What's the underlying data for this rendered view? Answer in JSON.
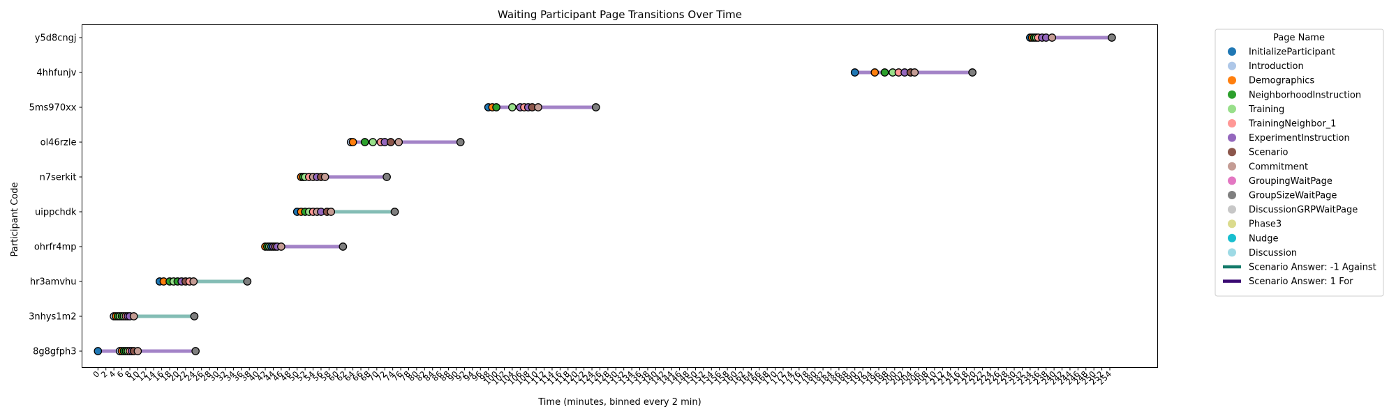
{
  "chart_data": {
    "type": "scatter",
    "title": "Waiting Participant Page Transitions Over Time",
    "xlabel": "Time (minutes, binned every 2 min)",
    "ylabel": "Participant Code",
    "xlim": [
      -4,
      266
    ],
    "x_ticks": [
      0,
      2,
      4,
      6,
      8,
      10,
      12,
      14,
      16,
      18,
      20,
      22,
      24,
      26,
      28,
      30,
      32,
      34,
      36,
      38,
      40,
      42,
      44,
      46,
      48,
      50,
      52,
      54,
      56,
      58,
      60,
      62,
      64,
      66,
      68,
      70,
      72,
      74,
      76,
      78,
      80,
      82,
      84,
      86,
      88,
      90,
      92,
      94,
      96,
      98,
      100,
      102,
      104,
      106,
      108,
      110,
      112,
      114,
      116,
      118,
      120,
      122,
      124,
      126,
      128,
      130,
      132,
      134,
      136,
      138,
      140,
      142,
      144,
      146,
      148,
      150,
      152,
      154,
      156,
      158,
      160,
      162,
      164,
      166,
      168,
      170,
      172,
      174,
      176,
      178,
      180,
      182,
      184,
      186,
      188,
      190,
      192,
      194,
      196,
      198,
      200,
      202,
      204,
      206,
      208,
      210,
      212,
      214,
      216,
      218,
      220,
      222,
      224,
      226,
      228,
      230,
      232,
      234,
      236,
      238,
      240,
      242,
      244,
      246,
      248,
      250,
      252,
      254
    ],
    "participants": [
      "8g8gfph3",
      "3nhys1m2",
      "hr3amvhu",
      "ohrfr4mp",
      "uippchdk",
      "n7serkit",
      "ol46rzle",
      "5ms970xx",
      "4hhfunjv",
      "y5d8cngj"
    ],
    "grid": false,
    "legend": {
      "title": "Page Name",
      "placement": "outside-right",
      "pages": [
        {
          "name": "InitializeParticipant",
          "color": "#1f77b4"
        },
        {
          "name": "Introduction",
          "color": "#aec7e8"
        },
        {
          "name": "Demographics",
          "color": "#ff7f0e"
        },
        {
          "name": "NeighborhoodInstruction",
          "color": "#2ca02c"
        },
        {
          "name": "Training",
          "color": "#98df8a"
        },
        {
          "name": "TrainingNeighbor_1",
          "color": "#ff9896"
        },
        {
          "name": "ExperimentInstruction",
          "color": "#9467bd"
        },
        {
          "name": "Scenario",
          "color": "#8c564b"
        },
        {
          "name": "Commitment",
          "color": "#c49c94"
        },
        {
          "name": "GroupingWaitPage",
          "color": "#e377c2"
        },
        {
          "name": "GroupSizeWaitPage",
          "color": "#7f7f7f"
        },
        {
          "name": "DiscussionGRPWaitPage",
          "color": "#c7c7c7"
        },
        {
          "name": "Phase3",
          "color": "#dbdb8d"
        },
        {
          "name": "Nudge",
          "color": "#17becf"
        },
        {
          "name": "Discussion",
          "color": "#9edae5"
        }
      ],
      "answers": [
        {
          "name": "Scenario Answer: -1 Against",
          "color": "#137a6a"
        },
        {
          "name": "Scenario Answer: 1 For",
          "color": "#3b0a73"
        }
      ]
    },
    "series": [
      {
        "participant": "8g8gfph3",
        "answer": 1,
        "points": [
          {
            "x": 0,
            "page": "InitializeParticipant"
          },
          {
            "x": 5.5,
            "page": "Introduction"
          },
          {
            "x": 6,
            "page": "Demographics"
          },
          {
            "x": 6.5,
            "page": "NeighborhoodInstruction"
          },
          {
            "x": 7,
            "page": "NeighborhoodInstruction"
          },
          {
            "x": 7.5,
            "page": "Training"
          },
          {
            "x": 8,
            "page": "TrainingNeighbor_1"
          },
          {
            "x": 8.5,
            "page": "ExperimentInstruction"
          },
          {
            "x": 9,
            "page": "Scenario"
          },
          {
            "x": 10,
            "page": "Commitment"
          },
          {
            "x": 24.5,
            "page": "GroupSizeWaitPage"
          }
        ]
      },
      {
        "participant": "3nhys1m2",
        "answer": -1,
        "points": [
          {
            "x": 4,
            "page": "Introduction"
          },
          {
            "x": 4.5,
            "page": "Demographics"
          },
          {
            "x": 5,
            "page": "NeighborhoodInstruction"
          },
          {
            "x": 5.5,
            "page": "Training"
          },
          {
            "x": 6,
            "page": "NeighborhoodInstruction"
          },
          {
            "x": 6.5,
            "page": "Training"
          },
          {
            "x": 7,
            "page": "TrainingNeighbor_1"
          },
          {
            "x": 7.5,
            "page": "ExperimentInstruction"
          },
          {
            "x": 8,
            "page": "ExperimentInstruction"
          },
          {
            "x": 9,
            "page": "Commitment"
          },
          {
            "x": 24.2,
            "page": "GroupSizeWaitPage"
          }
        ]
      },
      {
        "participant": "hr3amvhu",
        "answer": -1,
        "points": [
          {
            "x": 15.5,
            "page": "InitializeParticipant"
          },
          {
            "x": 16.5,
            "page": "Demographics"
          },
          {
            "x": 18,
            "page": "NeighborhoodInstruction"
          },
          {
            "x": 19,
            "page": "Training"
          },
          {
            "x": 20,
            "page": "NeighborhoodInstruction"
          },
          {
            "x": 21,
            "page": "ExperimentInstruction"
          },
          {
            "x": 22,
            "page": "Scenario"
          },
          {
            "x": 23,
            "page": "TrainingNeighbor_1"
          },
          {
            "x": 24,
            "page": "Commitment"
          },
          {
            "x": 37.5,
            "page": "GroupSizeWaitPage"
          }
        ]
      },
      {
        "participant": "ohrfr4mp",
        "answer": 1,
        "points": [
          {
            "x": 42,
            "page": "Demographics"
          },
          {
            "x": 42.5,
            "page": "NeighborhoodInstruction"
          },
          {
            "x": 43,
            "page": "Training"
          },
          {
            "x": 43.5,
            "page": "InitializeParticipant"
          },
          {
            "x": 44,
            "page": "ExperimentInstruction"
          },
          {
            "x": 44.5,
            "page": "Scenario"
          },
          {
            "x": 45,
            "page": "ExperimentInstruction"
          },
          {
            "x": 46,
            "page": "Commitment"
          },
          {
            "x": 61.5,
            "page": "GroupSizeWaitPage"
          }
        ]
      },
      {
        "participant": "uippchdk",
        "answer": -1,
        "points": [
          {
            "x": 50,
            "page": "InitializeParticipant"
          },
          {
            "x": 51,
            "page": "Demographics"
          },
          {
            "x": 52,
            "page": "NeighborhoodInstruction"
          },
          {
            "x": 53,
            "page": "Training"
          },
          {
            "x": 54,
            "page": "TrainingNeighbor_1"
          },
          {
            "x": 55,
            "page": "Commitment"
          },
          {
            "x": 56,
            "page": "ExperimentInstruction"
          },
          {
            "x": 57.5,
            "page": "Scenario"
          },
          {
            "x": 58.5,
            "page": "Commitment"
          },
          {
            "x": 74.5,
            "page": "GroupSizeWaitPage"
          }
        ]
      },
      {
        "participant": "n7serkit",
        "answer": 1,
        "points": [
          {
            "x": 51,
            "page": "Demographics"
          },
          {
            "x": 51.5,
            "page": "NeighborhoodInstruction"
          },
          {
            "x": 52,
            "page": "Training"
          },
          {
            "x": 53,
            "page": "TrainingNeighbor_1"
          },
          {
            "x": 54,
            "page": "Commitment"
          },
          {
            "x": 55,
            "page": "ExperimentInstruction"
          },
          {
            "x": 56,
            "page": "Scenario"
          },
          {
            "x": 57,
            "page": "Commitment"
          },
          {
            "x": 72.5,
            "page": "GroupSizeWaitPage"
          }
        ]
      },
      {
        "participant": "ol46rzle",
        "answer": 1,
        "points": [
          {
            "x": 63.5,
            "page": "Introduction"
          },
          {
            "x": 64,
            "page": "Demographics"
          },
          {
            "x": 67,
            "page": "NeighborhoodInstruction"
          },
          {
            "x": 69,
            "page": "Training"
          },
          {
            "x": 71,
            "page": "TrainingNeighbor_1"
          },
          {
            "x": 72,
            "page": "ExperimentInstruction"
          },
          {
            "x": 73.5,
            "page": "Scenario"
          },
          {
            "x": 75.5,
            "page": "Commitment"
          },
          {
            "x": 91,
            "page": "GroupSizeWaitPage"
          }
        ]
      },
      {
        "participant": "5ms970xx",
        "answer": 1,
        "points": [
          {
            "x": 98,
            "page": "InitializeParticipant"
          },
          {
            "x": 99,
            "page": "Demographics"
          },
          {
            "x": 100,
            "page": "NeighborhoodInstruction"
          },
          {
            "x": 104,
            "page": "Training"
          },
          {
            "x": 106,
            "page": "ExperimentInstruction"
          },
          {
            "x": 107,
            "page": "TrainingNeighbor_1"
          },
          {
            "x": 108,
            "page": "ExperimentInstruction"
          },
          {
            "x": 109,
            "page": "Scenario"
          },
          {
            "x": 110.5,
            "page": "Commitment"
          },
          {
            "x": 125,
            "page": "GroupSizeWaitPage"
          }
        ]
      },
      {
        "participant": "4hhfunjv",
        "answer": 1,
        "points": [
          {
            "x": 190,
            "page": "InitializeParticipant"
          },
          {
            "x": 195,
            "page": "Demographics"
          },
          {
            "x": 197.5,
            "page": "NeighborhoodInstruction"
          },
          {
            "x": 199.5,
            "page": "Training"
          },
          {
            "x": 201,
            "page": "TrainingNeighbor_1"
          },
          {
            "x": 202.5,
            "page": "ExperimentInstruction"
          },
          {
            "x": 204,
            "page": "Scenario"
          },
          {
            "x": 205,
            "page": "Commitment"
          },
          {
            "x": 219.5,
            "page": "GroupSizeWaitPage"
          }
        ]
      },
      {
        "participant": "y5d8cngj",
        "answer": 1,
        "points": [
          {
            "x": 234,
            "page": "InitializeParticipant"
          },
          {
            "x": 234.5,
            "page": "Demographics"
          },
          {
            "x": 235,
            "page": "NeighborhoodInstruction"
          },
          {
            "x": 235.5,
            "page": "Training"
          },
          {
            "x": 236,
            "page": "TrainingNeighbor_1"
          },
          {
            "x": 237,
            "page": "ExperimentInstruction"
          },
          {
            "x": 238,
            "page": "ExperimentInstruction"
          },
          {
            "x": 239.5,
            "page": "Commitment"
          },
          {
            "x": 254.5,
            "page": "GroupSizeWaitPage"
          }
        ]
      }
    ]
  }
}
